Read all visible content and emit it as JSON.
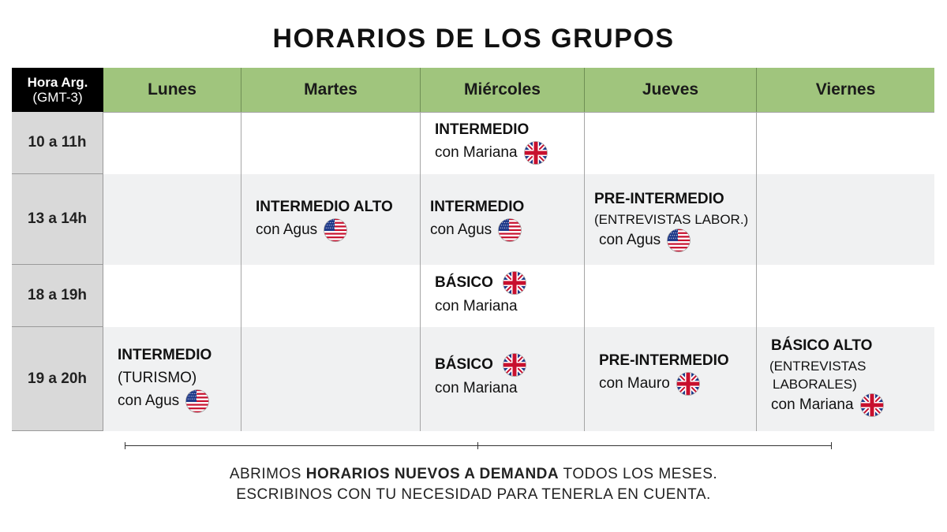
{
  "title": "HORARIOS DE LOS GRUPOS",
  "header": {
    "time_col_line1": "Hora Arg.",
    "time_col_line2": "(GMT-3)",
    "days": [
      "Lunes",
      "Martes",
      "Miércoles",
      "Jueves",
      "Viernes"
    ]
  },
  "times": [
    "10 a 11h",
    "13 a 14h",
    "18 a 19h",
    "19 a 20h"
  ],
  "slots": {
    "wed_10": {
      "level": "INTERMEDIO",
      "teacher": "con Mariana",
      "flag": "uk-flag"
    },
    "tue_13": {
      "level": "INTERMEDIO ALTO",
      "teacher": "con Agus",
      "flag": "us-flag"
    },
    "wed_13": {
      "level": "INTERMEDIO",
      "teacher": "con Agus",
      "flag": "us-flag"
    },
    "thu_13": {
      "level": "PRE-INTERMEDIO",
      "note": "(ENTREVISTAS LABOR.)",
      "teacher": "con Agus",
      "flag": "us-flag"
    },
    "wed_18": {
      "level": "BÁSICO",
      "teacher": "con Mariana",
      "flag": "uk-flag"
    },
    "mon_19": {
      "level": "INTERMEDIO",
      "note": "(TURISMO)",
      "teacher": "con Agus",
      "flag": "us-flag"
    },
    "wed_19": {
      "level": "BÁSICO",
      "teacher": "con Mariana",
      "flag": "uk-flag"
    },
    "thu_19": {
      "level": "PRE-INTERMEDIO",
      "teacher": "con Mauro",
      "flag": "uk-flag"
    },
    "fri_19": {
      "level": "BÁSICO ALTO",
      "note_line1": "(ENTREVISTAS",
      "note_line2": "LABORALES)",
      "teacher": "con Mariana",
      "flag": "uk-flag"
    }
  },
  "footer": {
    "line1_pre": "ABRIMOS ",
    "line1_bold": "HORARIOS NUEVOS A DEMANDA",
    "line1_post": " TODOS LOS MESES.",
    "line2": "ESCRIBINOS CON TU NECESIDAD PARA TENERLA EN CUENTA."
  },
  "colors": {
    "header_green": "#a0c57d",
    "time_gray": "#d9d9d9",
    "row_shade": "#f0f1f2",
    "header_black": "#000000"
  }
}
